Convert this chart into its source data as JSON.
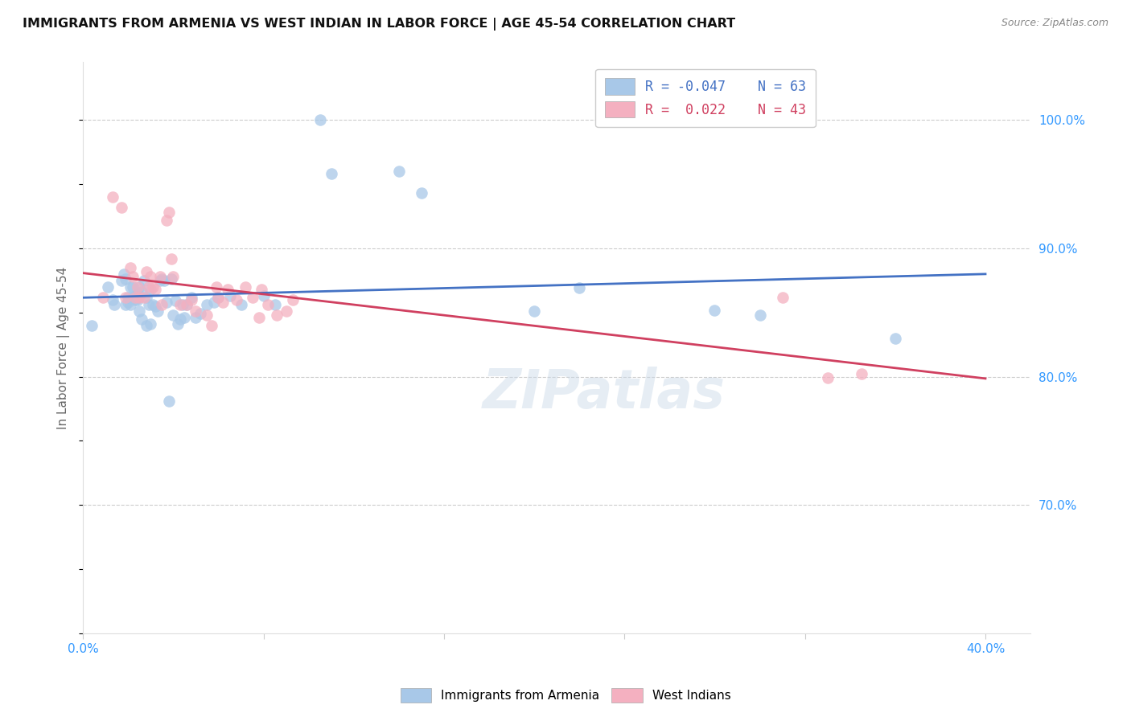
{
  "title": "IMMIGRANTS FROM ARMENIA VS WEST INDIAN IN LABOR FORCE | AGE 45-54 CORRELATION CHART",
  "source": "Source: ZipAtlas.com",
  "ylabel": "In Labor Force | Age 45-54",
  "y_tick_labels": [
    "100.0%",
    "90.0%",
    "80.0%",
    "70.0%"
  ],
  "y_tick_values": [
    1.0,
    0.9,
    0.8,
    0.7
  ],
  "x_tick_values": [
    0.0,
    0.08,
    0.16,
    0.24,
    0.32,
    0.4
  ],
  "xlim": [
    0.0,
    0.42
  ],
  "ylim": [
    0.6,
    1.045
  ],
  "armenia_color": "#a8c8e8",
  "west_indian_color": "#f4b0c0",
  "armenia_line_color": "#4472c4",
  "west_indian_line_color": "#d04060",
  "watermark": "ZIPatlas",
  "armenia_R": -0.047,
  "armenia_N": 63,
  "west_indian_R": 0.022,
  "west_indian_N": 43,
  "armenia_x": [
    0.004,
    0.011,
    0.013,
    0.014,
    0.017,
    0.018,
    0.019,
    0.019,
    0.02,
    0.02,
    0.021,
    0.021,
    0.022,
    0.022,
    0.023,
    0.024,
    0.024,
    0.024,
    0.025,
    0.025,
    0.026,
    0.026,
    0.027,
    0.028,
    0.028,
    0.029,
    0.03,
    0.03,
    0.031,
    0.032,
    0.033,
    0.034,
    0.035,
    0.036,
    0.037,
    0.038,
    0.039,
    0.04,
    0.041,
    0.042,
    0.043,
    0.044,
    0.045,
    0.046,
    0.048,
    0.05,
    0.052,
    0.055,
    0.058,
    0.06,
    0.065,
    0.07,
    0.08,
    0.085,
    0.105,
    0.11,
    0.14,
    0.15,
    0.2,
    0.22,
    0.28,
    0.3,
    0.36
  ],
  "armenia_y": [
    0.84,
    0.87,
    0.86,
    0.856,
    0.875,
    0.88,
    0.876,
    0.856,
    0.862,
    0.858,
    0.87,
    0.856,
    0.87,
    0.862,
    0.86,
    0.862,
    0.86,
    0.865,
    0.851,
    0.87,
    0.866,
    0.845,
    0.875,
    0.862,
    0.84,
    0.856,
    0.868,
    0.841,
    0.856,
    0.855,
    0.851,
    0.875,
    0.876,
    0.875,
    0.858,
    0.781,
    0.876,
    0.848,
    0.859,
    0.841,
    0.845,
    0.856,
    0.846,
    0.856,
    0.862,
    0.846,
    0.849,
    0.856,
    0.858,
    0.862,
    0.863,
    0.856,
    0.863,
    0.856,
    1.0,
    0.958,
    0.96,
    0.943,
    0.851,
    0.869,
    0.852,
    0.848,
    0.83
  ],
  "west_indian_x": [
    0.009,
    0.013,
    0.017,
    0.019,
    0.021,
    0.022,
    0.023,
    0.024,
    0.025,
    0.027,
    0.028,
    0.029,
    0.03,
    0.031,
    0.032,
    0.034,
    0.035,
    0.037,
    0.038,
    0.039,
    0.04,
    0.043,
    0.046,
    0.048,
    0.05,
    0.055,
    0.057,
    0.059,
    0.06,
    0.062,
    0.064,
    0.068,
    0.072,
    0.075,
    0.078,
    0.079,
    0.082,
    0.086,
    0.09,
    0.093,
    0.31,
    0.33,
    0.345
  ],
  "west_indian_y": [
    0.862,
    0.94,
    0.932,
    0.862,
    0.885,
    0.878,
    0.862,
    0.87,
    0.862,
    0.862,
    0.882,
    0.87,
    0.878,
    0.87,
    0.868,
    0.878,
    0.856,
    0.922,
    0.928,
    0.892,
    0.878,
    0.856,
    0.856,
    0.86,
    0.851,
    0.848,
    0.84,
    0.87,
    0.862,
    0.858,
    0.868,
    0.86,
    0.87,
    0.862,
    0.846,
    0.868,
    0.856,
    0.848,
    0.851,
    0.86,
    0.862,
    0.799,
    0.802
  ]
}
